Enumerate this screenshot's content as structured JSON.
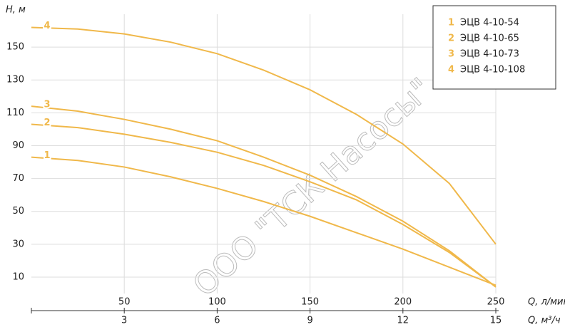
{
  "chart_data": {
    "type": "line",
    "y_label": "H, м",
    "x_label": "Q, л/мин",
    "x2_label": "Q, м³/ч",
    "x": [
      0,
      25,
      50,
      75,
      100,
      125,
      150,
      175,
      200,
      225,
      250
    ],
    "series": [
      {
        "label": "1",
        "name": "ЭЦВ 4-10-54",
        "color": "#f0b84a",
        "values": [
          83,
          81,
          77,
          71,
          64,
          56,
          47,
          37,
          27,
          16,
          5
        ]
      },
      {
        "label": "2",
        "name": "ЭЦВ 4-10-65",
        "color": "#f0b84a",
        "values": [
          103,
          101,
          97,
          92,
          86,
          78,
          68,
          57,
          42,
          25,
          4
        ]
      },
      {
        "label": "3",
        "name": "ЭЦВ 4-10-73",
        "color": "#f0b84a",
        "values": [
          114,
          111,
          106,
          100,
          93,
          83,
          72,
          59,
          44,
          26,
          4
        ]
      },
      {
        "label": "4",
        "name": "ЭЦВ 4-10-108",
        "color": "#f0b84a",
        "values": [
          162,
          161,
          158,
          153,
          146,
          136,
          124,
          109,
          91,
          67,
          30
        ]
      }
    ],
    "xlim": [
      0,
      250
    ],
    "xticks": [
      50,
      100,
      150,
      200,
      250
    ],
    "x2lim": [
      0,
      15
    ],
    "x2ticks": [
      3,
      6,
      9,
      12,
      15
    ],
    "ylim": [
      0,
      170
    ],
    "yticks": [
      10,
      30,
      50,
      70,
      90,
      110,
      130,
      150
    ],
    "grid": true,
    "legend": "top-right",
    "watermark": "ООО \"ТСК Насосы\""
  }
}
